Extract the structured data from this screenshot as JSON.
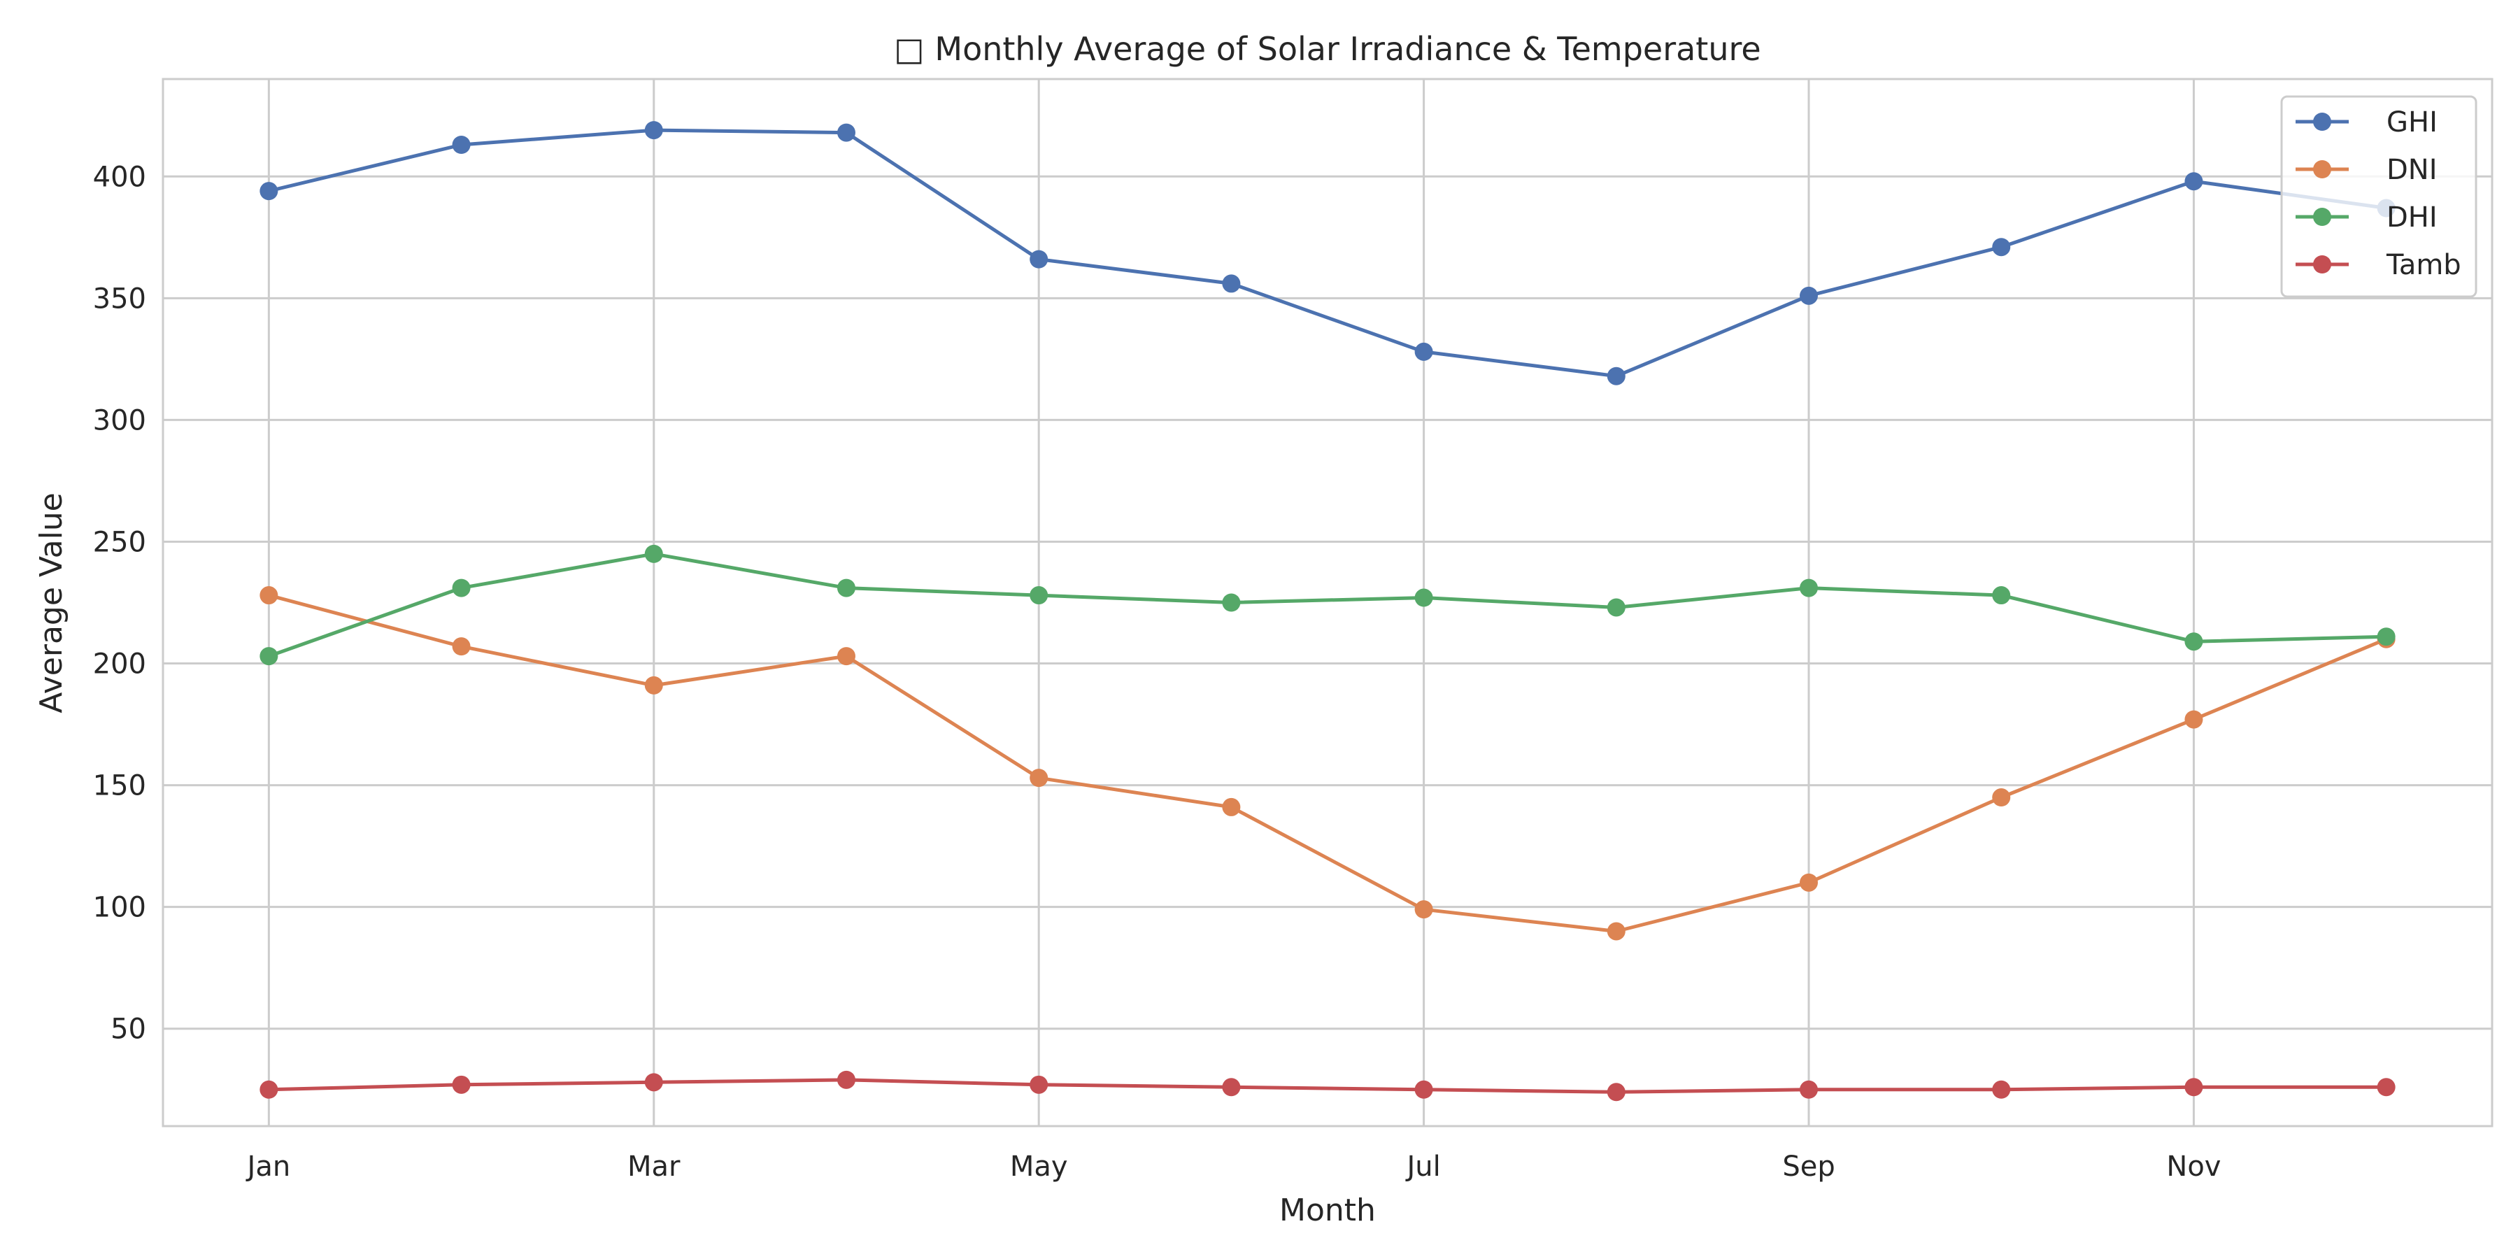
{
  "chart_data": {
    "type": "line",
    "title": "□ Monthly Average of Solar Irradiance & Temperature",
    "xlabel": "Month",
    "ylabel": "Average Value",
    "x": [
      1,
      2,
      3,
      4,
      5,
      6,
      7,
      8,
      9,
      10,
      11,
      12
    ],
    "xticks": [
      1,
      3,
      5,
      7,
      9,
      11
    ],
    "xtick_labels": [
      "Jan",
      "Mar",
      "May",
      "Jul",
      "Sep",
      "Nov"
    ],
    "xlim": [
      0.45,
      12.55
    ],
    "ylim": [
      10,
      440
    ],
    "yticks": [
      50,
      100,
      150,
      200,
      250,
      300,
      350,
      400
    ],
    "grid": true,
    "legend_position": "top-right",
    "series": [
      {
        "name": "GHI",
        "color": "#4C72B0",
        "values": [
          394,
          413,
          419,
          418,
          366,
          356,
          328,
          318,
          351,
          371,
          398,
          387
        ]
      },
      {
        "name": "DNI",
        "color": "#DD8452",
        "values": [
          228,
          207,
          191,
          203,
          153,
          141,
          99,
          90,
          110,
          145,
          177,
          210
        ]
      },
      {
        "name": "DHI",
        "color": "#55A868",
        "values": [
          203,
          231,
          245,
          231,
          228,
          225,
          227,
          223,
          231,
          228,
          209,
          211
        ]
      },
      {
        "name": "Tamb",
        "color": "#C44E52",
        "values": [
          25,
          27,
          28,
          29,
          27,
          26,
          25,
          24,
          25,
          25,
          26,
          26
        ]
      }
    ]
  }
}
